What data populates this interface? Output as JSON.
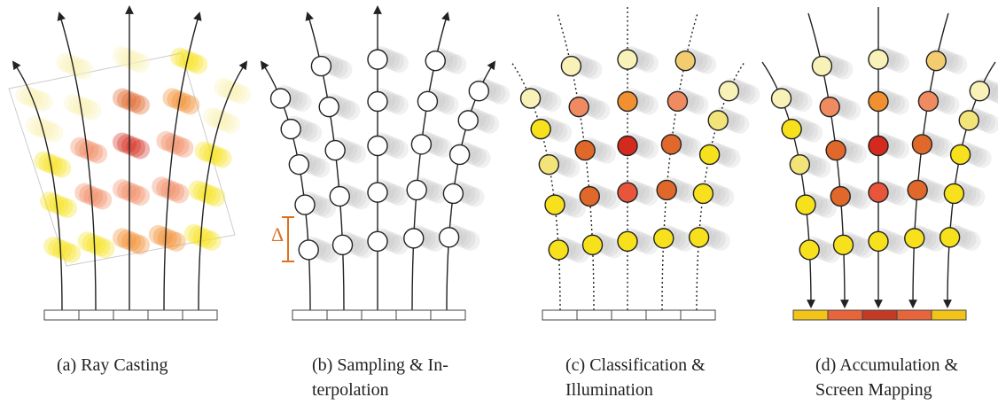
{
  "captions": [
    [
      "(a) Ray Casting"
    ],
    [
      "(b) Sampling & In-",
      "terpolation"
    ],
    [
      "(c) Classification &",
      "Illumination"
    ],
    [
      "(d) Accumulation &",
      "Screen Mapping"
    ]
  ],
  "delta_label": "Δ"
}
